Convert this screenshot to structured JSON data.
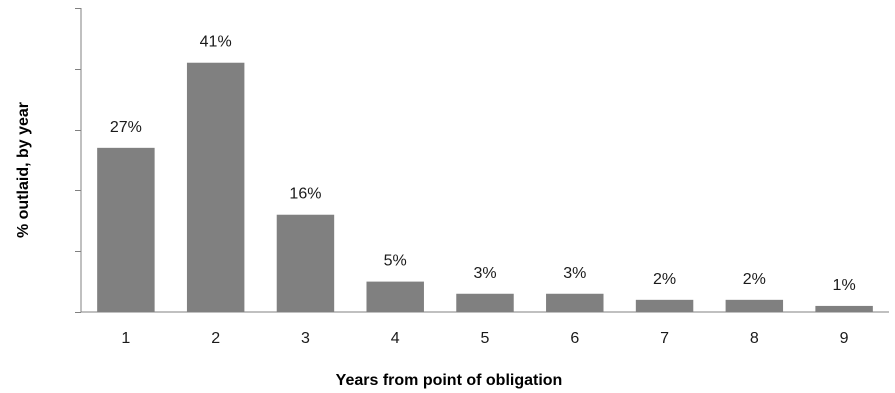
{
  "chart_data": {
    "type": "bar",
    "categories": [
      "1",
      "2",
      "3",
      "4",
      "5",
      "6",
      "7",
      "8",
      "9"
    ],
    "values": [
      27,
      41,
      16,
      5,
      3,
      3,
      2,
      2,
      1
    ],
    "data_labels": [
      "27%",
      "41%",
      "16%",
      "5%",
      "3%",
      "3%",
      "2%",
      "2%",
      "1%"
    ],
    "title": "",
    "xlabel": "Years from point of obligation",
    "ylabel": "% outlaid, by year",
    "ylim": [
      0,
      50
    ],
    "y_tick_step": 10,
    "y_tick_labels_shown": false,
    "grid": false,
    "legend": "none",
    "bar_color": "#808080",
    "axis_color": "#808080"
  }
}
